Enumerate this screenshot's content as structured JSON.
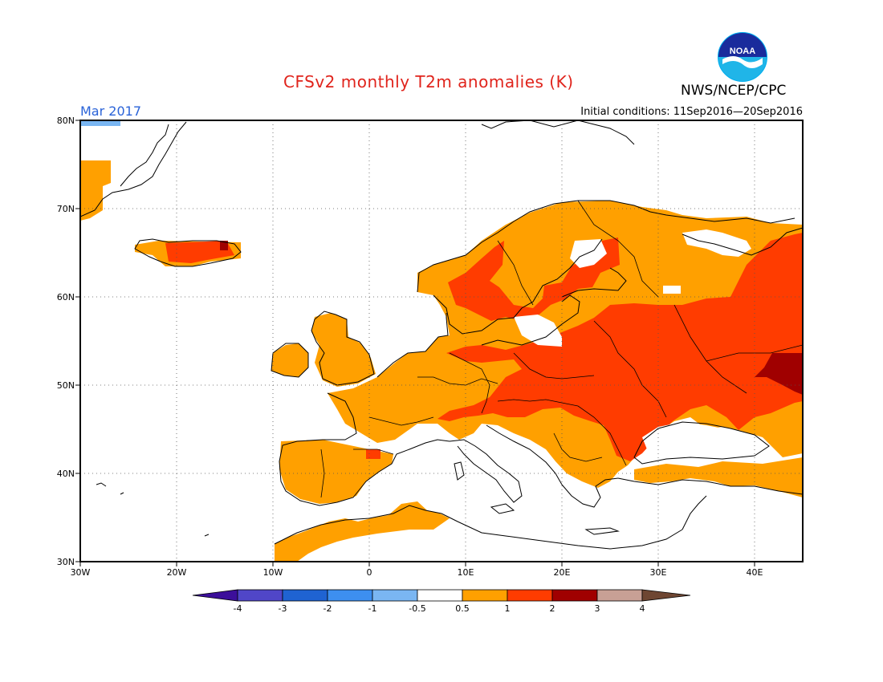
{
  "header": {
    "title": "CFSv2 monthly T2m anomalies (K)",
    "org": "NWS/NCEP/CPC",
    "logo_text": "NOAA",
    "valid_month": "Mar 2017",
    "initial_conditions": "Initial conditions: 11Sep2016—20Sep2016"
  },
  "map": {
    "lon_range": [
      -30,
      45
    ],
    "lat_range": [
      30,
      80
    ],
    "lon_ticks": [
      {
        "value": -30,
        "label": "30W"
      },
      {
        "value": -20,
        "label": "20W"
      },
      {
        "value": -10,
        "label": "10W"
      },
      {
        "value": 0,
        "label": "0"
      },
      {
        "value": 10,
        "label": "10E"
      },
      {
        "value": 20,
        "label": "20E"
      },
      {
        "value": 30,
        "label": "30E"
      },
      {
        "value": 40,
        "label": "40E"
      }
    ],
    "lat_ticks": [
      {
        "value": 30,
        "label": "30N"
      },
      {
        "value": 40,
        "label": "40N"
      },
      {
        "value": 50,
        "label": "50N"
      },
      {
        "value": 60,
        "label": "60N"
      },
      {
        "value": 70,
        "label": "70N"
      },
      {
        "value": 80,
        "label": "80N"
      }
    ],
    "grid": "dotted"
  },
  "colorbar": {
    "bins": [
      {
        "color": "#3c0f9a"
      },
      {
        "color": "#5046c8"
      },
      {
        "color": "#1f63d2"
      },
      {
        "color": "#3d8ff0"
      },
      {
        "color": "#7ab6f2"
      },
      {
        "color": "#ffffff"
      },
      {
        "color": "#ffa000"
      },
      {
        "color": "#ff3c00"
      },
      {
        "color": "#a00000"
      },
      {
        "color": "#c8a095"
      },
      {
        "color": "#6e4632"
      }
    ],
    "labels": [
      "-4",
      "-3",
      "-2",
      "-1",
      "-0.5",
      "0.5",
      "1",
      "2",
      "3",
      "4"
    ]
  }
}
